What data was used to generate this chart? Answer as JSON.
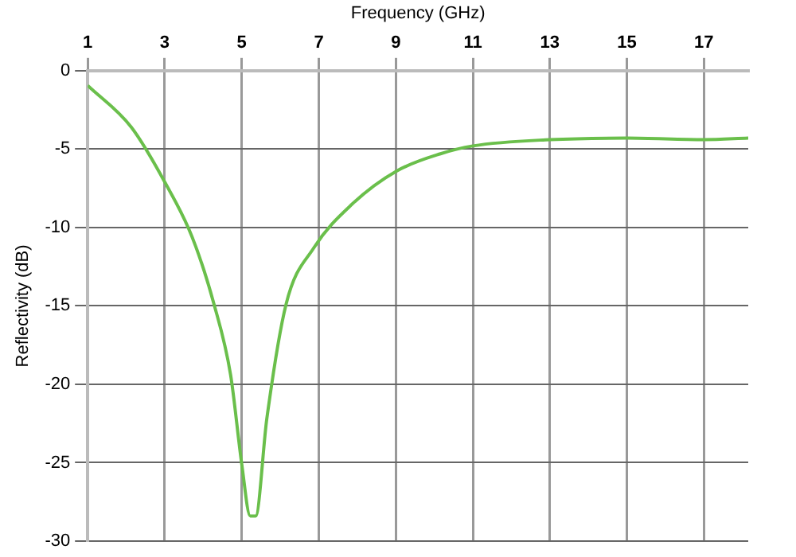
{
  "chart_data": {
    "type": "line",
    "xlabel": "Frequency (GHz)",
    "ylabel": "Reflectivity (dB)",
    "xlim": [
      1,
      18.15
    ],
    "xticks": [
      1,
      3,
      5,
      7,
      9,
      11,
      13,
      15,
      17
    ],
    "ylim": [
      -30,
      0
    ],
    "yticks": [
      -30,
      -25,
      -20,
      -15,
      -10,
      -5,
      0
    ],
    "grid": true,
    "legend": false,
    "marker": "none",
    "line_style": "solid",
    "series": [
      {
        "color": "#6abf4b",
        "x": [
          1,
          2.13,
          3.0,
          3.71,
          4.28,
          4.71,
          5.0,
          5.22,
          5.36,
          5.65,
          6.15,
          6.87,
          7.87,
          9.02,
          10.16,
          11,
          13,
          15,
          17,
          18.15
        ],
        "values": [
          -0.95,
          -3.6,
          -7.1,
          -10.6,
          -14.9,
          -19.4,
          -25.1,
          -28.4,
          -28.4,
          -22.2,
          -14.9,
          -11.3,
          -8.5,
          -6.4,
          -5.3,
          -4.8,
          -4.4,
          -4.3,
          -4.4,
          -4.3
        ]
      }
    ]
  }
}
